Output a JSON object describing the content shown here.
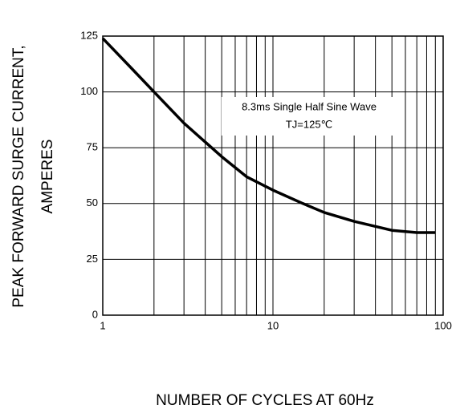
{
  "chart_data": {
    "type": "line",
    "ylabel": [
      "PEAK FORWARD SURGE CURRENT,",
      "AMPERES"
    ],
    "xlabel": "NUMBER  OF  CYCLES AT 60Hz",
    "annotations": [
      "8.3ms Single Half Sine Wave",
      "TJ=125℃"
    ],
    "x": [
      1,
      1.5,
      2,
      3,
      5,
      7,
      10,
      15,
      20,
      30,
      50,
      70,
      90
    ],
    "series": [
      {
        "name": "Peak forward surge current",
        "color": "#000000",
        "values": [
          124,
          110,
          100,
          86,
          71,
          62,
          56,
          50,
          46,
          42,
          38,
          37,
          37
        ]
      }
    ],
    "xlog": true,
    "xlim": [
      1,
      100
    ],
    "xticks": [
      1,
      10,
      100
    ],
    "xgrid_minor": [
      2,
      3,
      4,
      5,
      6,
      7,
      8,
      9,
      20,
      30,
      40,
      50,
      60,
      70,
      80,
      90
    ],
    "ylim": [
      0,
      125
    ],
    "yticks": [
      0,
      25,
      50,
      75,
      100,
      125
    ],
    "grid": true
  }
}
